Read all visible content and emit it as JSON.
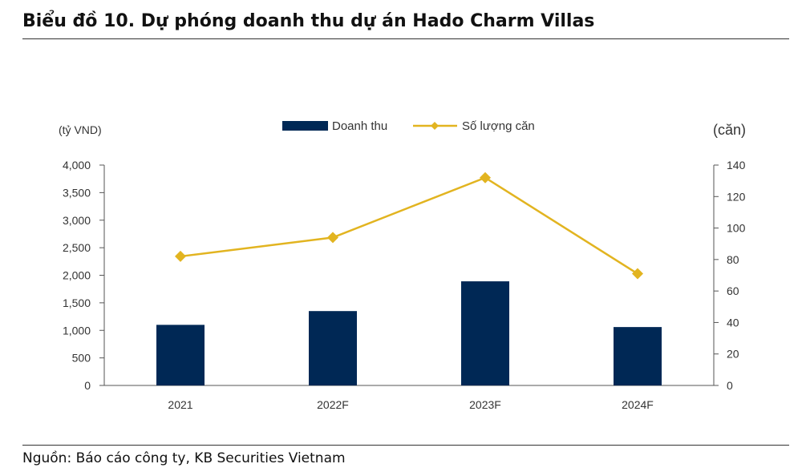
{
  "title": "Biểu đồ 10. Dự phóng doanh thu dự án Hado Charm Villas",
  "source": "Nguồn: Báo cáo công ty, KB Securities Vietnam",
  "colors": {
    "bar": "#002855",
    "line": "#e2b420",
    "axis": "#555555"
  },
  "chart_data": {
    "type": "bar",
    "categories": [
      "2021",
      "2022F",
      "2023F",
      "2024F"
    ],
    "series": [
      {
        "name": "Doanh thu",
        "type": "bar",
        "axis": "left",
        "values": [
          1100,
          1350,
          1890,
          1060
        ]
      },
      {
        "name": "Số lượng căn",
        "type": "line",
        "axis": "right",
        "marker": "diamond",
        "values": [
          82,
          94,
          132,
          71
        ]
      }
    ],
    "ylabel_left": "(tỷ VND)",
    "ylabel_right": "(căn)",
    "ylim_left": [
      0,
      4000
    ],
    "ylim_right": [
      0,
      140
    ],
    "yticks_left": [
      "0",
      "500",
      "1,000",
      "1,500",
      "2,000",
      "2,500",
      "3,000",
      "3,500",
      "4,000"
    ],
    "yticks_right": [
      "0",
      "20",
      "40",
      "60",
      "80",
      "100",
      "120",
      "140"
    ],
    "legend_position": "top-center",
    "grid": false
  }
}
